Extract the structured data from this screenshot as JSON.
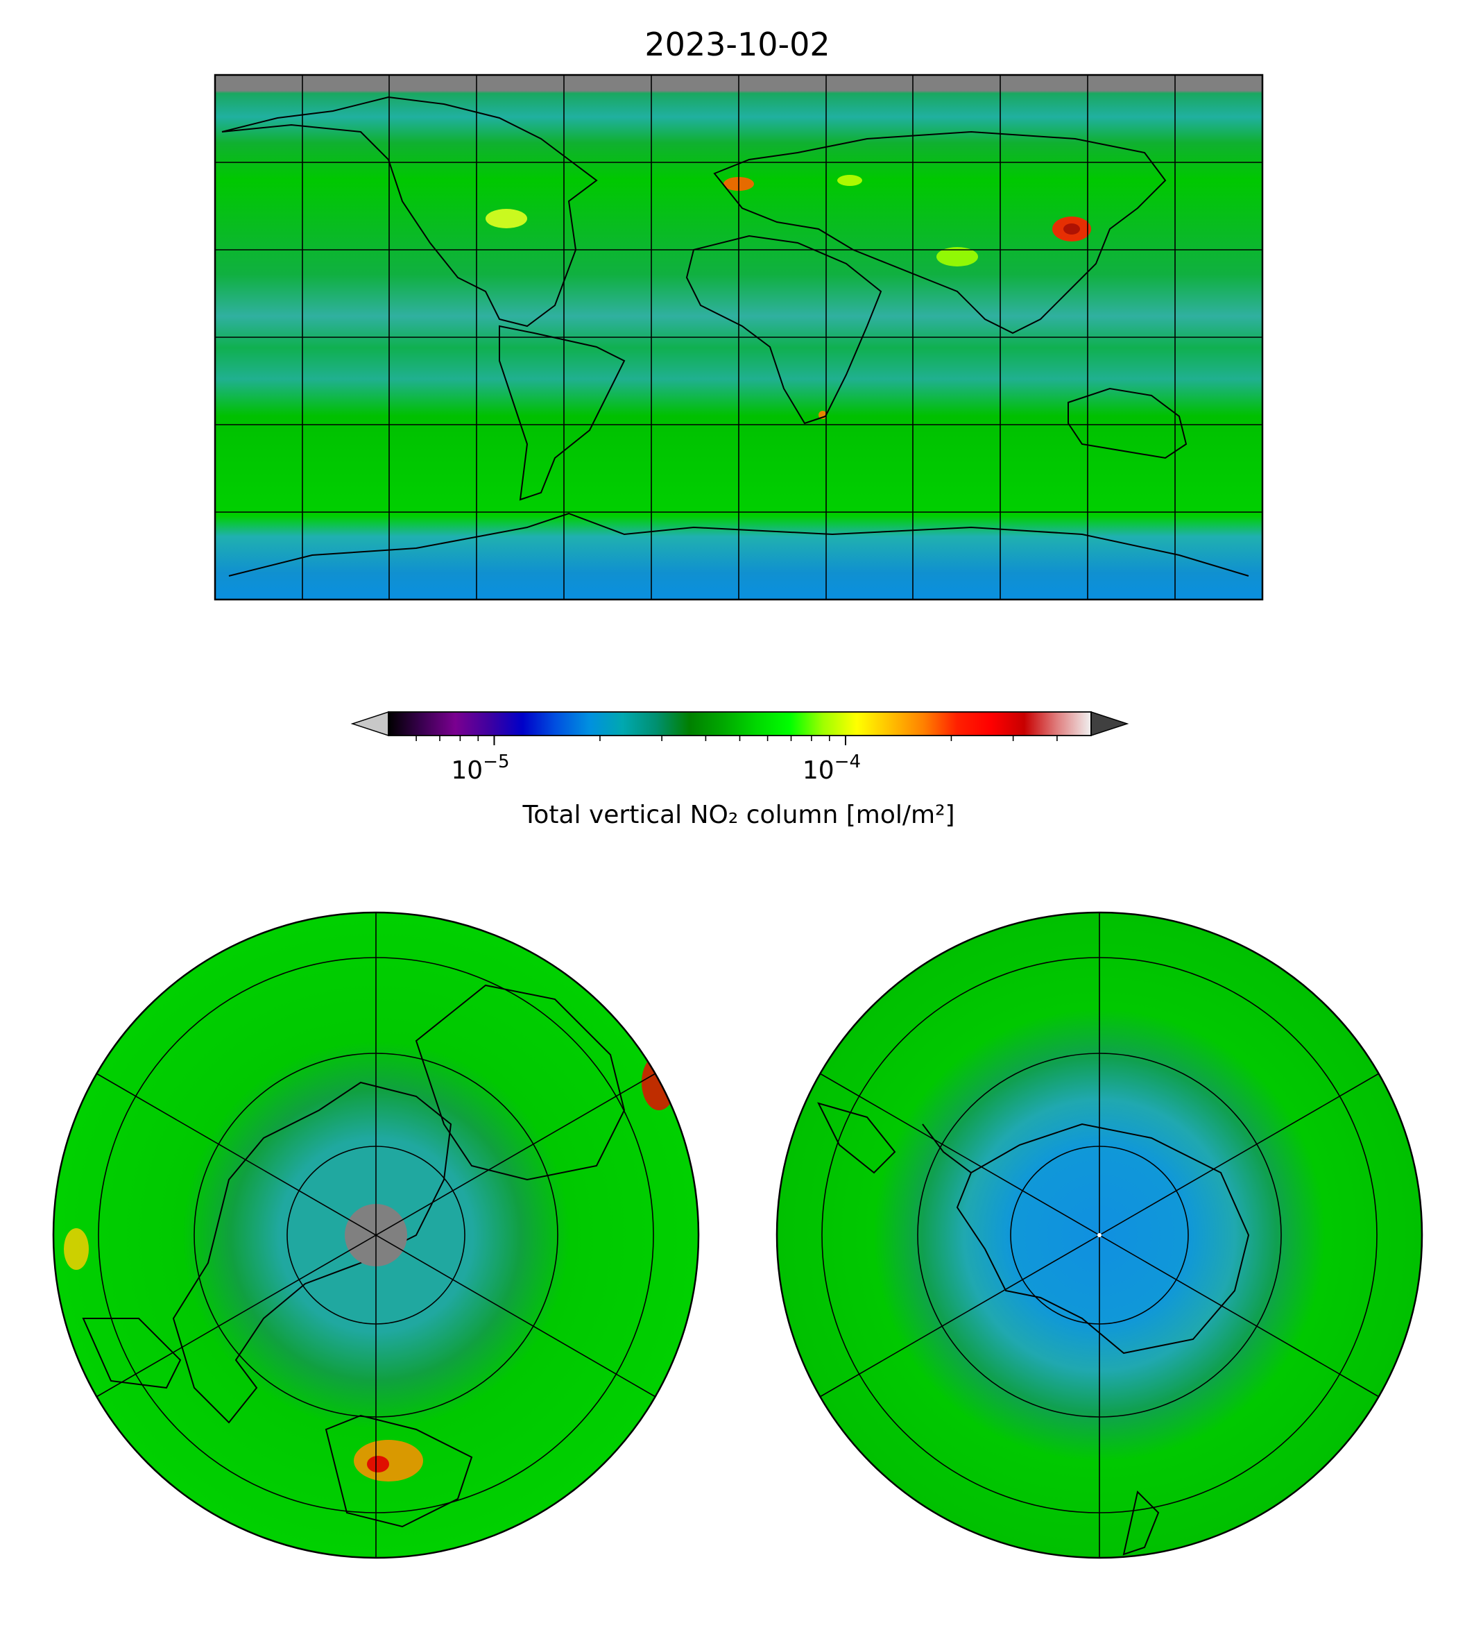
{
  "figure": {
    "title": "2023-10-02"
  },
  "colorbar": {
    "label": "Total vertical NO₂ column [mol/m²]",
    "scale": "log",
    "range": [
      5e-06,
      0.0005
    ],
    "extend": "both",
    "major_ticks": [
      {
        "value": 1e-05,
        "base": "10",
        "exponent": "−5"
      },
      {
        "value": 0.0001,
        "base": "10",
        "exponent": "−4"
      }
    ],
    "minor_ticks": [
      6e-06,
      7e-06,
      8e-06,
      9e-06,
      2e-05,
      3e-05,
      4e-05,
      5e-05,
      6e-05,
      7e-05,
      8e-05,
      9e-05,
      0.0002,
      0.0003,
      0.0004
    ],
    "colors": [
      "#000000",
      "#3a0050",
      "#7a0090",
      "#4000a0",
      "#0000c8",
      "#0050e0",
      "#0090e0",
      "#00a8b0",
      "#009070",
      "#008000",
      "#00a800",
      "#00d800",
      "#00ff00",
      "#a0ff00",
      "#ffff00",
      "#ffc000",
      "#ff8000",
      "#ff2000",
      "#ff0000",
      "#c80000",
      "#e08080",
      "#f0f0f0"
    ],
    "under_color": "#c8c8c8",
    "over_color": "#404040"
  },
  "maps": {
    "global": {
      "projection": "equirectangular",
      "gridlines_lon": [
        -150,
        -120,
        -90,
        -60,
        -30,
        0,
        30,
        60,
        90,
        120,
        150
      ],
      "gridlines_lat": [
        -60,
        -30,
        0,
        30,
        60
      ]
    },
    "north_polar": {
      "projection": "north-polar-stereographic"
    },
    "south_polar": {
      "projection": "south-polar-stereographic"
    }
  }
}
